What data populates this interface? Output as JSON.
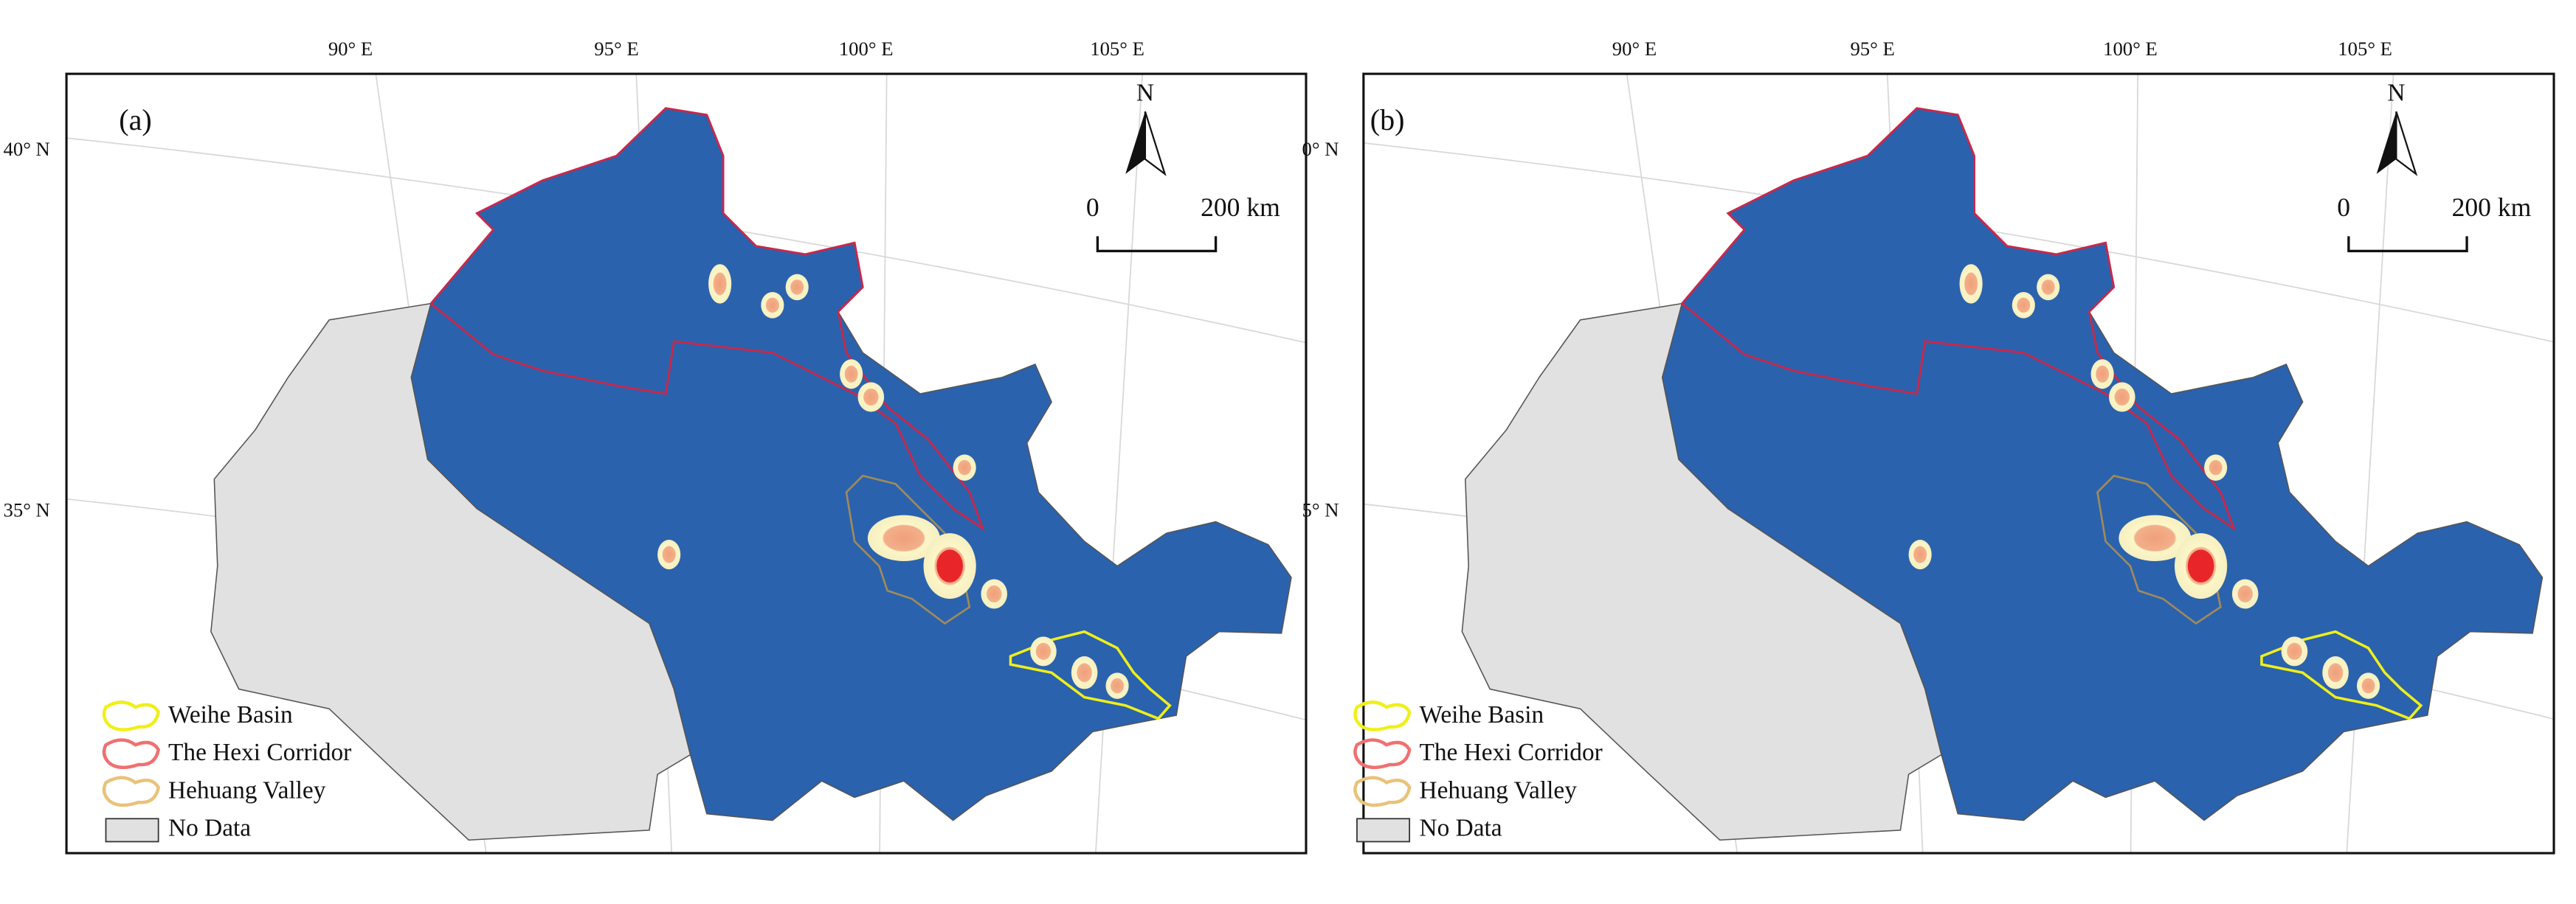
{
  "panels": [
    {
      "label": "(a)",
      "lon_labels": [
        "90° E",
        "95° E",
        "100° E",
        "105° E"
      ],
      "lat_labels": [
        "40° N",
        "35° N"
      ],
      "north": "N",
      "scale_bar": {
        "start": "0",
        "end": "200 km"
      },
      "legend": [
        "Weihe Basin",
        "The Hexi Corridor",
        "Hehuang Valley",
        "No Data"
      ]
    },
    {
      "label": "(b)",
      "lon_labels": [
        "90° E",
        "95° E",
        "100° E",
        "105° E"
      ],
      "lat_labels": [
        "0° N",
        "5° N"
      ],
      "north": "N",
      "scale_bar": {
        "start": "0",
        "end": "200 km"
      },
      "legend": [
        "Weihe Basin",
        "The Hexi Corridor",
        "Hehuang Valley",
        "No Data"
      ]
    }
  ]
}
